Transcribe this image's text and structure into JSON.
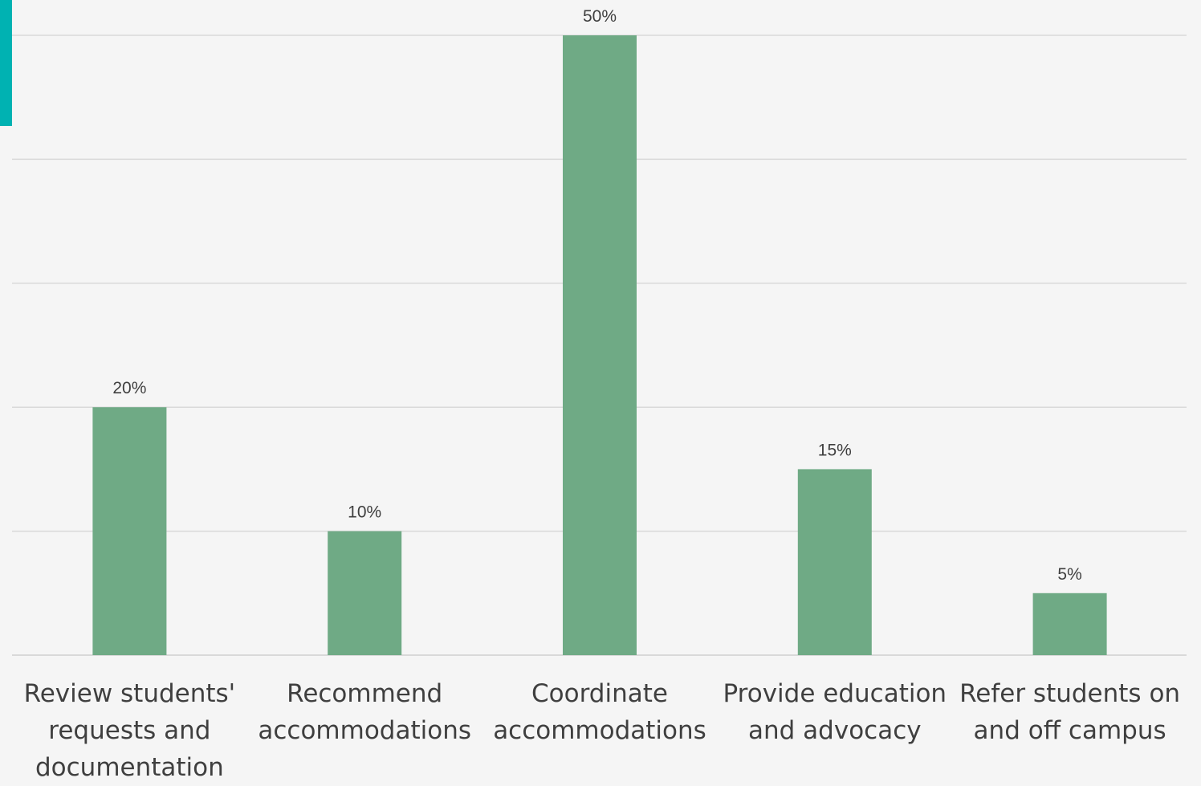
{
  "colors": {
    "background": "#f5f5f5",
    "accent": "#00b2b2",
    "bar": "#6faa85",
    "gridline": "#d9d9d9",
    "label_text": "#3f3f3f"
  },
  "chart_data": {
    "type": "bar",
    "title": "",
    "xlabel": "",
    "ylabel": "",
    "ylim": [
      0,
      50
    ],
    "grid": true,
    "legend": "none",
    "categories": [
      [
        "Review students'",
        "requests and",
        "documentation"
      ],
      [
        "Recommend",
        "accommodations"
      ],
      [
        "Coordinate",
        "accommodations"
      ],
      [
        "Provide education",
        "and advocacy"
      ],
      [
        "Refer students on",
        "and off campus"
      ]
    ],
    "values": [
      20,
      10,
      50,
      15,
      5
    ],
    "data_labels": [
      "20%",
      "10%",
      "50%",
      "15%",
      "5%"
    ]
  }
}
